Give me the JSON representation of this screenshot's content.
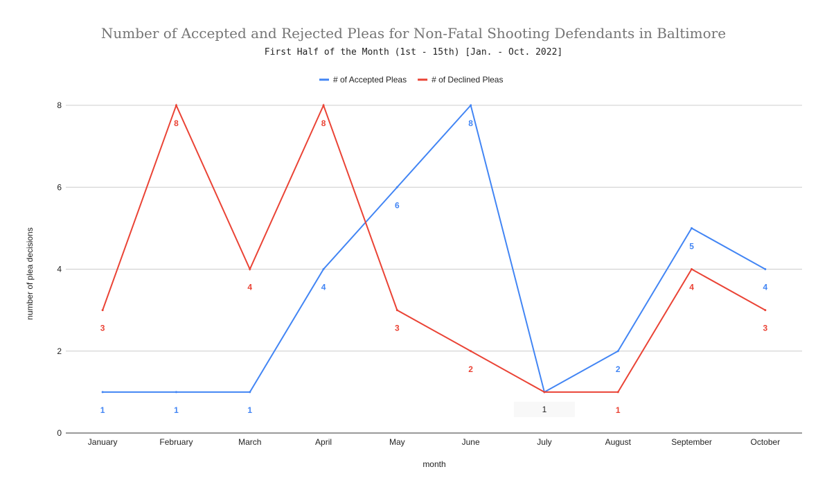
{
  "chart_data": {
    "type": "line",
    "title": "Number of Accepted and Rejected Pleas for Non-Fatal Shooting Defendants in Baltimore",
    "subtitle": "First Half of the Month (1st - 15th) [Jan. - Oct. 2022]",
    "xlabel": "month",
    "ylabel": "number of plea decisions",
    "categories": [
      "January",
      "February",
      "March",
      "April",
      "May",
      "June",
      "July",
      "August",
      "September",
      "October"
    ],
    "ylim": [
      0,
      8
    ],
    "yticks": [
      0,
      2,
      4,
      6,
      8
    ],
    "grid": true,
    "legend_position": "top",
    "series": [
      {
        "name": "# of Accepted Pleas",
        "color": "#4285f4",
        "values": [
          1,
          1,
          1,
          4,
          6,
          8,
          1,
          2,
          5,
          4
        ]
      },
      {
        "name": "# of Declined Pleas",
        "color": "#ea4335",
        "values": [
          3,
          8,
          4,
          8,
          3,
          2,
          1,
          1,
          4,
          3
        ]
      }
    ],
    "july_shared_label": "1"
  }
}
